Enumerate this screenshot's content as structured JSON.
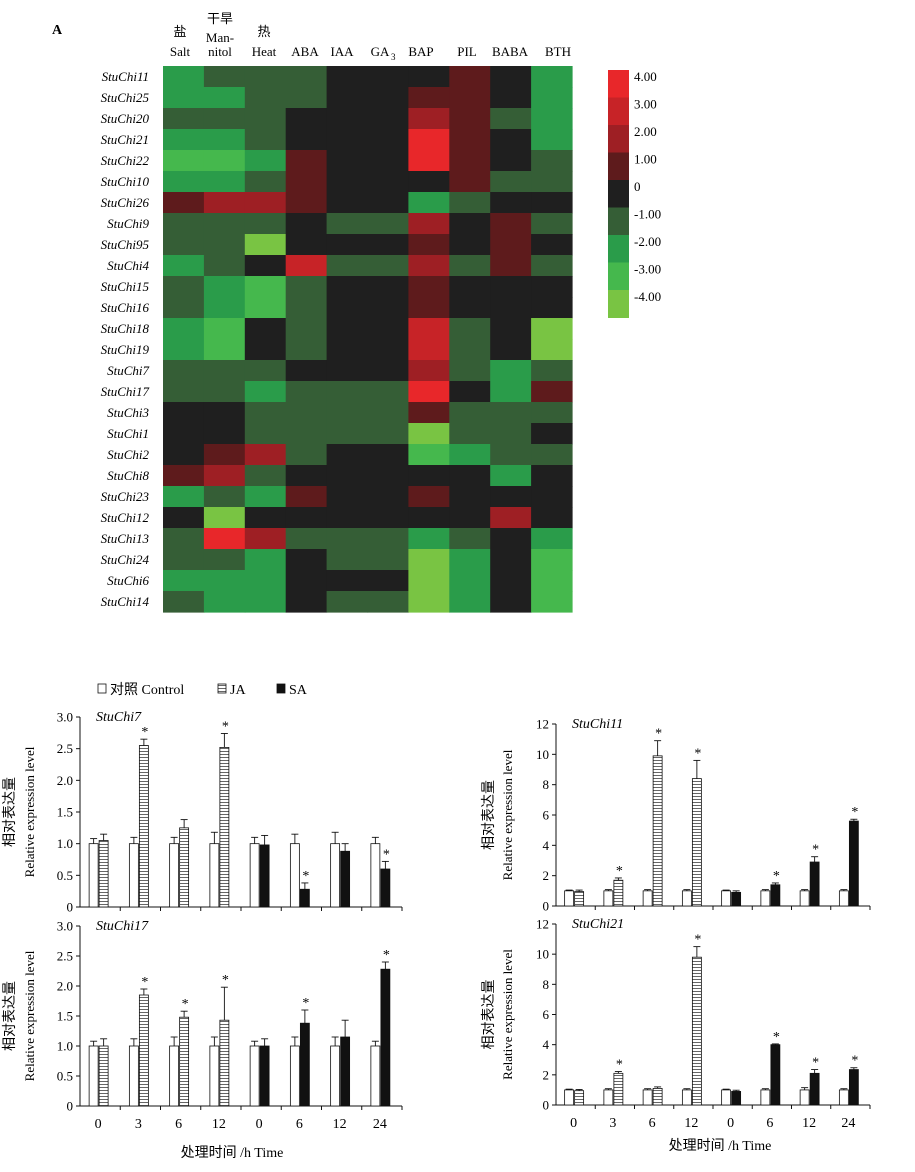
{
  "panel_label": "A",
  "heatmap": {
    "columns": [
      {
        "zh": "盐",
        "en": "Salt"
      },
      {
        "zh": "干旱",
        "en": "Man-nitol"
      },
      {
        "zh": "热",
        "en": "Heat"
      },
      {
        "zh": "",
        "en": "ABA"
      },
      {
        "zh": "",
        "en": "IAA"
      },
      {
        "zh": "",
        "en": "GA3"
      },
      {
        "zh": "",
        "en": "BAP"
      },
      {
        "zh": "",
        "en": "PIL"
      },
      {
        "zh": "",
        "en": "BABA"
      },
      {
        "zh": "",
        "en": "BTH"
      }
    ],
    "legend": [
      "4.00",
      "3.00",
      "2.00",
      "1.00",
      "0",
      "-1.00",
      "-2.00",
      "-3.00",
      "-4.00"
    ],
    "colors": {
      "4": "#e8272a",
      "3": "#c72327",
      "2": "#9e1f24",
      "1": "#5e1b1c",
      "0": "#1f1f1f",
      "-1": "#355e36",
      "-2": "#2a9c4a",
      "-3": "#45b84d",
      "-4": "#79c443"
    }
  },
  "legend_bottom": [
    {
      "label": "对照 Control",
      "pattern": "control"
    },
    {
      "label": "JA",
      "pattern": "ja"
    },
    {
      "label": "SA",
      "pattern": "sa"
    }
  ],
  "x_axis_title": "处理时间 /h Time",
  "y_axis_title_zh": "相对表达量",
  "y_axis_title_en": "Relative expression level",
  "chart_data": [
    {
      "type": "heatmap",
      "rows": [
        "StuChi11",
        "StuChi25",
        "StuChi20",
        "StuChi21",
        "StuChi22",
        "StuChi10",
        "StuChi26",
        "StuChi9",
        "StuChi95",
        "StuChi4",
        "StuChi15",
        "StuChi16",
        "StuChi18",
        "StuChi19",
        "StuChi7",
        "StuChi17",
        "StuChi3",
        "StuChi1",
        "StuChi2",
        "StuChi8",
        "StuChi23",
        "StuChi12",
        "StuChi13",
        "StuChi24",
        "StuChi6",
        "StuChi14"
      ],
      "columns": [
        "Salt",
        "Mannitol",
        "Heat",
        "ABA",
        "IAA",
        "GA3",
        "BAP",
        "PIL",
        "BABA",
        "BTH"
      ],
      "values": [
        [
          -2,
          -1,
          -1,
          -1,
          0,
          0,
          0,
          1,
          0,
          -2
        ],
        [
          -2,
          -2,
          -1,
          -1,
          0,
          0,
          1,
          1,
          0,
          -2
        ],
        [
          -1,
          -1,
          -1,
          0,
          0,
          0,
          2,
          1,
          -1,
          -2
        ],
        [
          -2,
          -2,
          -1,
          0,
          0,
          0,
          4,
          1,
          0,
          -2
        ],
        [
          -3,
          -3,
          -2,
          1,
          0,
          0,
          4,
          1,
          0,
          -1
        ],
        [
          -2,
          -2,
          -1,
          1,
          0,
          0,
          0,
          1,
          -1,
          -1
        ],
        [
          1,
          2,
          2,
          1,
          0,
          0,
          -2,
          -1,
          0,
          0
        ],
        [
          -1,
          -1,
          -1,
          0,
          -1,
          -1,
          2,
          0,
          1,
          -1
        ],
        [
          -1,
          -1,
          -4,
          0,
          0,
          0,
          1,
          0,
          1,
          0
        ],
        [
          -2,
          -1,
          0,
          3,
          -1,
          -1,
          2,
          -1,
          1,
          -1
        ],
        [
          -1,
          -2,
          -3,
          -1,
          0,
          0,
          1,
          0,
          0,
          0
        ],
        [
          -1,
          -2,
          -3,
          -1,
          0,
          0,
          1,
          0,
          0,
          0
        ],
        [
          -2,
          -3,
          0,
          -1,
          0,
          0,
          3,
          -1,
          0,
          -4
        ],
        [
          -2,
          -3,
          0,
          -1,
          0,
          0,
          3,
          -1,
          0,
          -4
        ],
        [
          -1,
          -1,
          -1,
          0,
          0,
          0,
          2,
          -1,
          -2,
          -1
        ],
        [
          -1,
          -1,
          -2,
          -1,
          -1,
          -1,
          4,
          0,
          -2,
          1
        ],
        [
          0,
          0,
          -1,
          -1,
          -1,
          -1,
          1,
          -1,
          -1,
          -1
        ],
        [
          0,
          0,
          -1,
          -1,
          -1,
          -1,
          -4,
          -1,
          -1,
          0
        ],
        [
          0,
          1,
          2,
          -1,
          0,
          0,
          -3,
          -2,
          -1,
          -1
        ],
        [
          1,
          2,
          -1,
          0,
          0,
          0,
          0,
          0,
          -2,
          0
        ],
        [
          -2,
          -1,
          -2,
          1,
          0,
          0,
          1,
          0,
          0,
          0
        ],
        [
          0,
          -4,
          0,
          0,
          0,
          0,
          0,
          0,
          2,
          0
        ],
        [
          -1,
          4,
          2,
          -1,
          -1,
          -1,
          -2,
          -1,
          0,
          -2
        ],
        [
          -1,
          -1,
          -2,
          0,
          -1,
          -1,
          -4,
          -2,
          0,
          -3
        ],
        [
          -2,
          -2,
          -2,
          0,
          0,
          0,
          -4,
          -2,
          0,
          -3
        ],
        [
          -1,
          -2,
          -2,
          0,
          -1,
          -1,
          -4,
          -2,
          0,
          -3
        ]
      ],
      "scale": [
        -4,
        4
      ]
    },
    {
      "type": "bar",
      "title": "StuChi7",
      "x": [
        "0",
        "3",
        "6",
        "12",
        "0",
        "6",
        "12",
        "24"
      ],
      "ylim": [
        0,
        3.0
      ],
      "yticks": [
        "0",
        "0.5",
        "1.0",
        "1.5",
        "2.0",
        "2.5",
        "3.0"
      ],
      "series": [
        {
          "name": "对照 Control",
          "values": [
            1.0,
            1.0,
            1.0,
            1.0,
            1.0,
            1.0,
            1.0,
            1.0
          ],
          "errors": [
            0.08,
            0.1,
            0.1,
            0.18,
            0.1,
            0.15,
            0.18,
            0.1
          ]
        },
        {
          "name": "JA",
          "values": [
            1.05,
            2.55,
            1.25,
            2.52,
            null,
            null,
            null,
            null
          ],
          "errors": [
            0.1,
            0.1,
            0.13,
            0.22,
            null,
            null,
            null,
            null
          ]
        },
        {
          "name": "SA",
          "values": [
            null,
            null,
            null,
            null,
            0.98,
            0.28,
            0.88,
            0.6
          ],
          "errors": [
            null,
            null,
            null,
            null,
            0.15,
            0.1,
            0.12,
            0.12
          ]
        }
      ],
      "significant": [
        null,
        "JA",
        null,
        "JA",
        null,
        "SA",
        null,
        "SA"
      ]
    },
    {
      "type": "bar",
      "title": "StuChi11",
      "x": [
        "0",
        "3",
        "6",
        "12",
        "0",
        "6",
        "12",
        "24"
      ],
      "ylim": [
        0,
        12
      ],
      "yticks": [
        "0",
        "2",
        "4",
        "6",
        "8",
        "10",
        "12"
      ],
      "series": [
        {
          "name": "对照 Control",
          "values": [
            1.0,
            1.0,
            1.0,
            1.0,
            1.0,
            1.0,
            1.0,
            1.0
          ],
          "errors": [
            0.05,
            0.08,
            0.08,
            0.08,
            0.05,
            0.08,
            0.08,
            0.08
          ]
        },
        {
          "name": "JA",
          "values": [
            0.95,
            1.7,
            9.9,
            8.4,
            null,
            null,
            null,
            null
          ],
          "errors": [
            0.1,
            0.15,
            1.0,
            1.2,
            null,
            null,
            null,
            null
          ]
        },
        {
          "name": "SA",
          "values": [
            null,
            null,
            null,
            null,
            0.9,
            1.4,
            2.9,
            5.6
          ],
          "errors": [
            null,
            null,
            null,
            null,
            0.1,
            0.12,
            0.35,
            0.12
          ]
        }
      ],
      "significant": [
        null,
        "JA",
        "JA",
        "JA",
        null,
        "SA",
        "SA",
        "SA"
      ]
    },
    {
      "type": "bar",
      "title": "StuChi17",
      "x": [
        "0",
        "3",
        "6",
        "12",
        "0",
        "6",
        "12",
        "24"
      ],
      "ylim": [
        0,
        3.0
      ],
      "yticks": [
        "0",
        "0.5",
        "1.0",
        "1.5",
        "2.0",
        "2.5",
        "3.0"
      ],
      "series": [
        {
          "name": "对照 Control",
          "values": [
            1.0,
            1.0,
            1.0,
            1.0,
            1.0,
            1.0,
            1.0,
            1.0
          ],
          "errors": [
            0.08,
            0.12,
            0.15,
            0.15,
            0.08,
            0.15,
            0.15,
            0.08
          ]
        },
        {
          "name": "JA",
          "values": [
            1.0,
            1.85,
            1.48,
            1.43,
            null,
            null,
            null,
            null
          ],
          "errors": [
            0.12,
            0.1,
            0.1,
            0.55,
            null,
            null,
            null,
            null
          ]
        },
        {
          "name": "SA",
          "values": [
            null,
            null,
            null,
            null,
            1.0,
            1.38,
            1.15,
            2.28
          ],
          "errors": [
            null,
            null,
            null,
            null,
            0.12,
            0.22,
            0.28,
            0.12
          ]
        }
      ],
      "significant": [
        null,
        "JA",
        "JA",
        "JA",
        null,
        "SA",
        null,
        "SA"
      ]
    },
    {
      "type": "bar",
      "title": "StuChi21",
      "x": [
        "0",
        "3",
        "6",
        "12",
        "0",
        "6",
        "12",
        "24"
      ],
      "ylim": [
        0,
        12
      ],
      "yticks": [
        "0",
        "2",
        "4",
        "6",
        "8",
        "10",
        "12"
      ],
      "series": [
        {
          "name": "对照 Control",
          "values": [
            1.0,
            1.0,
            1.0,
            1.0,
            1.0,
            1.0,
            1.0,
            1.0
          ],
          "errors": [
            0.05,
            0.08,
            0.08,
            0.08,
            0.05,
            0.08,
            0.15,
            0.08
          ]
        },
        {
          "name": "JA",
          "values": [
            0.95,
            2.1,
            1.1,
            9.8,
            null,
            null,
            null,
            null
          ],
          "errors": [
            0.08,
            0.12,
            0.1,
            0.7,
            null,
            null,
            null,
            null
          ]
        },
        {
          "name": "SA",
          "values": [
            null,
            null,
            null,
            null,
            0.9,
            4.0,
            2.1,
            2.35
          ],
          "errors": [
            null,
            null,
            null,
            null,
            0.08,
            0.05,
            0.25,
            0.12
          ]
        }
      ],
      "significant": [
        null,
        "JA",
        null,
        "JA",
        null,
        "SA",
        "SA",
        "SA"
      ]
    }
  ]
}
